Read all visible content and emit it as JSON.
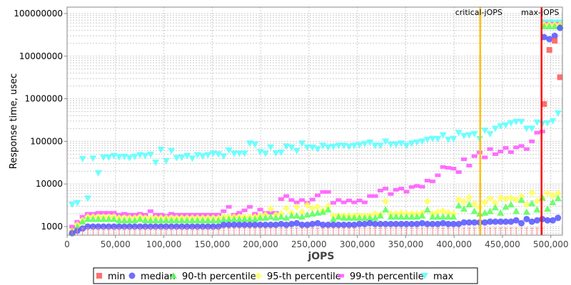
{
  "chart_data": {
    "type": "scatter",
    "title": "",
    "xlabel": "jOPS",
    "ylabel": "Response time, usec",
    "yscale": "log",
    "xlim": [
      0,
      512000
    ],
    "ylim": [
      700,
      150000000
    ],
    "grid": true,
    "legend_position": "bottom",
    "x_ticks": [
      0,
      50000,
      100000,
      150000,
      200000,
      250000,
      300000,
      350000,
      400000,
      450000,
      500000
    ],
    "x_tick_labels": [
      "0",
      "50,000",
      "100,000",
      "150,000",
      "200,000",
      "250,000",
      "300,000",
      "350,000",
      "400,000",
      "450,000",
      "500,000"
    ],
    "y_ticks": [
      1000,
      10000,
      100000,
      1000000,
      10000000,
      100000000
    ],
    "y_tick_labels": [
      "1000",
      "10000",
      "100000",
      "1000000",
      "10000000",
      "100000000"
    ],
    "annotations": [
      {
        "label": "critical-jOPS",
        "x": 427000,
        "color": "#ffc000"
      },
      {
        "label": "max-jOPS",
        "x": 490400,
        "color": "#ff0000"
      }
    ],
    "x_start": 5200,
    "x_step": 5400,
    "overflow_x": [
      493000,
      498500,
      504000,
      509500
    ],
    "series": [
      {
        "name": "min",
        "color": "#ff5555",
        "marker": "square",
        "values": [
          500,
          500,
          500,
          500,
          500,
          500,
          500,
          500,
          500,
          500,
          500,
          500,
          500,
          500,
          500,
          500,
          500,
          500,
          500,
          500,
          500,
          500,
          500,
          500,
          500,
          500,
          500,
          500,
          500,
          500,
          500,
          500,
          500,
          500,
          500,
          500,
          500,
          500,
          500,
          500,
          500,
          500,
          500,
          500,
          500,
          500,
          500,
          500,
          500,
          500,
          500,
          500,
          500,
          500,
          500,
          500,
          500,
          500,
          500,
          500,
          500,
          500,
          500,
          500,
          500,
          500,
          500,
          500,
          500,
          500,
          500,
          500,
          500,
          500,
          500,
          500,
          500,
          500,
          500,
          500,
          500,
          500,
          500,
          500,
          500,
          500,
          500,
          500,
          500,
          500,
          500
        ],
        "overflow": [
          750000,
          14000000,
          23000000,
          3200000
        ]
      },
      {
        "name": "median",
        "color": "#5555ff",
        "marker": "circle",
        "values": [
          700,
          800,
          900,
          1000,
          1000,
          1000,
          1000,
          1000,
          1000,
          1000,
          1000,
          1000,
          1000,
          1000,
          1000,
          1000,
          1000,
          1000,
          1000,
          1000,
          1000,
          1000,
          1000,
          1000,
          1000,
          1000,
          1000,
          1000,
          1000,
          1100,
          1100,
          1100,
          1100,
          1100,
          1100,
          1100,
          1100,
          1100,
          1100,
          1100,
          1150,
          1100,
          1150,
          1200,
          1100,
          1100,
          1150,
          1200,
          1100,
          1100,
          1100,
          1100,
          1100,
          1100,
          1100,
          1150,
          1150,
          1200,
          1150,
          1150,
          1150,
          1150,
          1150,
          1150,
          1150,
          1150,
          1150,
          1200,
          1150,
          1150,
          1150,
          1200,
          1150,
          1150,
          1150,
          1250,
          1250,
          1250,
          1250,
          1250,
          1300,
          1300,
          1300,
          1300,
          1300,
          1400,
          1200,
          1500,
          1300,
          1400,
          1500,
          1400,
          1400,
          1600,
          1400,
          1500,
          1600,
          2100
        ],
        "overflow": [
          28000000,
          25000000,
          30000000,
          46000000
        ]
      },
      {
        "name": "90-th percentile",
        "color": "#55ff55",
        "marker": "triangle-up",
        "values": [
          750,
          1000,
          1300,
          1500,
          1500,
          1500,
          1500,
          1500,
          1500,
          1400,
          1400,
          1400,
          1400,
          1500,
          1400,
          1400,
          1400,
          1400,
          1400,
          1400,
          1400,
          1400,
          1400,
          1400,
          1400,
          1400,
          1400,
          1400,
          1400,
          1500,
          1500,
          1500,
          1500,
          1500,
          1500,
          1500,
          1600,
          1600,
          1700,
          1600,
          1700,
          1600,
          1800,
          1800,
          1700,
          1900,
          2000,
          2100,
          2200,
          2500,
          1500,
          1700,
          1600,
          1600,
          1600,
          1600,
          1600,
          1600,
          1600,
          1800,
          2500,
          1700,
          1700,
          1700,
          1700,
          1700,
          1700,
          1800,
          2500,
          1700,
          1700,
          1700,
          1700,
          1700,
          3100,
          2600,
          3300,
          2300,
          2000,
          2100,
          2300,
          2800,
          2100,
          2900,
          3300,
          2300,
          4200,
          2200,
          3500,
          2500,
          4700,
          2600,
          3700,
          4600,
          3200,
          6000,
          10500,
          11500
        ],
        "overflow": [
          50000000,
          50000000,
          50000000,
          50000000
        ]
      },
      {
        "name": "95-th percentile",
        "color": "#ffff55",
        "marker": "diamond",
        "values": [
          800,
          1100,
          1400,
          1700,
          1700,
          1700,
          1700,
          1700,
          1700,
          1600,
          1600,
          1600,
          1600,
          1700,
          1600,
          1600,
          1600,
          1600,
          1600,
          1600,
          1600,
          1600,
          1600,
          1600,
          1600,
          1600,
          1600,
          1600,
          1600,
          1700,
          1700,
          1700,
          1700,
          1700,
          1700,
          1700,
          1800,
          1900,
          2600,
          1900,
          2000,
          2700,
          2100,
          2900,
          2200,
          3200,
          2700,
          2900,
          2400,
          3000,
          1800,
          1800,
          1800,
          1800,
          1800,
          1800,
          1800,
          1800,
          2000,
          1900,
          3900,
          2000,
          2000,
          2100,
          2000,
          2000,
          2000,
          2100,
          3900,
          2000,
          2200,
          2300,
          2100,
          2000,
          4300,
          3800,
          4800,
          3400,
          2800,
          3700,
          4600,
          3600,
          4700,
          4500,
          4700,
          4300,
          5100,
          3300,
          6200,
          4000,
          4700,
          6100,
          5300,
          6000,
          5400,
          9000,
          5000,
          6000,
          11000
        ],
        "overflow": [
          55000000,
          55000000,
          55000000,
          55000000
        ]
      },
      {
        "name": "99-th percentile",
        "color": "#ff55ff",
        "marker": "rect",
        "values": [
          1000,
          1300,
          1700,
          2000,
          2000,
          2100,
          2100,
          2100,
          2100,
          1900,
          2000,
          1900,
          1900,
          2000,
          1900,
          2300,
          1900,
          1900,
          1800,
          2000,
          1900,
          1900,
          1900,
          1900,
          1900,
          1900,
          1900,
          1900,
          1900,
          2300,
          2900,
          1900,
          2100,
          2400,
          2900,
          2000,
          2500,
          2100,
          2100,
          2100,
          4400,
          5200,
          4200,
          3700,
          4200,
          3600,
          4300,
          5400,
          6500,
          6500,
          3600,
          4200,
          3700,
          4100,
          3700,
          4100,
          3700,
          5200,
          5200,
          7000,
          7800,
          5800,
          7300,
          7800,
          6600,
          8500,
          9000,
          8600,
          12000,
          11500,
          16000,
          25000,
          24000,
          23000,
          19000,
          38000,
          27000,
          45000,
          55000,
          42000,
          66000,
          50000,
          58000,
          70000,
          56000,
          72000,
          78000,
          66000,
          100000,
          160000,
          170000
        ],
        "overflow": [
          58000000,
          58000000,
          58000000,
          58000000
        ]
      },
      {
        "name": "max",
        "color": "#55ffff",
        "marker": "triangle-down",
        "values": [
          3300,
          3600,
          39000,
          4600,
          40000,
          18000,
          42000,
          42000,
          46000,
          43000,
          44000,
          41000,
          44000,
          48000,
          46000,
          49000,
          32000,
          64000,
          35000,
          60000,
          41000,
          42000,
          46000,
          40000,
          48000,
          45000,
          48000,
          52000,
          50000,
          45000,
          62000,
          52000,
          52000,
          52000,
          90000,
          85000,
          57000,
          52000,
          73000,
          53000,
          55000,
          76000,
          72000,
          60000,
          90000,
          72000,
          72000,
          66000,
          80000,
          72000,
          75000,
          80000,
          80000,
          75000,
          80000,
          82000,
          88000,
          95000,
          80000,
          80000,
          100000,
          85000,
          85000,
          90000,
          80000,
          90000,
          95000,
          100000,
          110000,
          115000,
          115000,
          140000,
          110000,
          115000,
          160000,
          135000,
          140000,
          150000,
          115000,
          180000,
          150000,
          200000,
          230000,
          240000,
          270000,
          290000,
          290000,
          200000,
          200000,
          280000,
          260000,
          270000,
          300000,
          460000,
          480000
        ],
        "overflow": [
          62000000,
          62000000,
          62000000,
          62000000
        ]
      }
    ]
  }
}
